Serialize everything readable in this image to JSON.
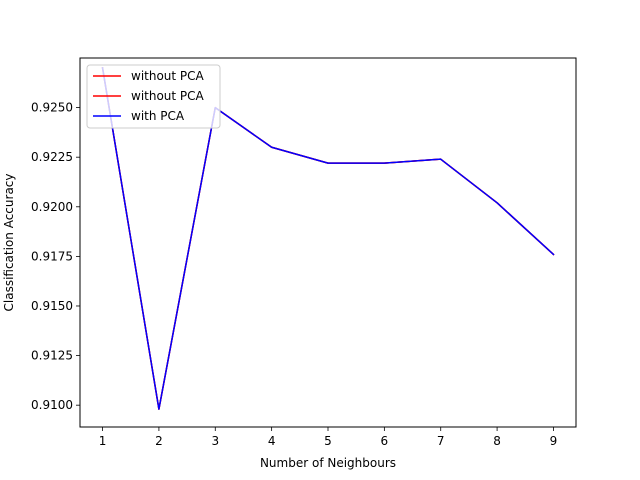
{
  "chart_data": {
    "type": "line",
    "title": "",
    "xlabel": "Number of Neighbours",
    "ylabel": "Classification Accuracy",
    "x": [
      1,
      2,
      3,
      4,
      5,
      6,
      7,
      8,
      9
    ],
    "xlim": [
      0.6,
      9.4
    ],
    "ylim": [
      0.9089,
      0.9275
    ],
    "xticks": [
      "1",
      "2",
      "3",
      "4",
      "5",
      "6",
      "7",
      "8",
      "9"
    ],
    "yticks": [
      "0.9100",
      "0.9125",
      "0.9150",
      "0.9175",
      "0.9200",
      "0.9225",
      "0.9250"
    ],
    "ytick_values": [
      0.91,
      0.9125,
      0.915,
      0.9175,
      0.92,
      0.9225,
      0.925
    ],
    "grid": false,
    "legend_position": "upper-left",
    "series": [
      {
        "name": "without PCA",
        "color": "#ff0000",
        "values": [
          0.927,
          0.9098,
          0.925,
          0.923,
          0.9222,
          0.9222,
          0.9224,
          0.9202,
          0.9176
        ]
      },
      {
        "name": "without PCA",
        "color": "#ff0000",
        "values": [
          0.927,
          0.9098,
          0.925,
          0.923,
          0.9222,
          0.9222,
          0.9224,
          0.9202,
          0.9176
        ]
      },
      {
        "name": "with PCA",
        "color": "#0000ff",
        "values": [
          0.927,
          0.9098,
          0.925,
          0.923,
          0.9222,
          0.9222,
          0.9224,
          0.9202,
          0.9176
        ]
      }
    ]
  }
}
